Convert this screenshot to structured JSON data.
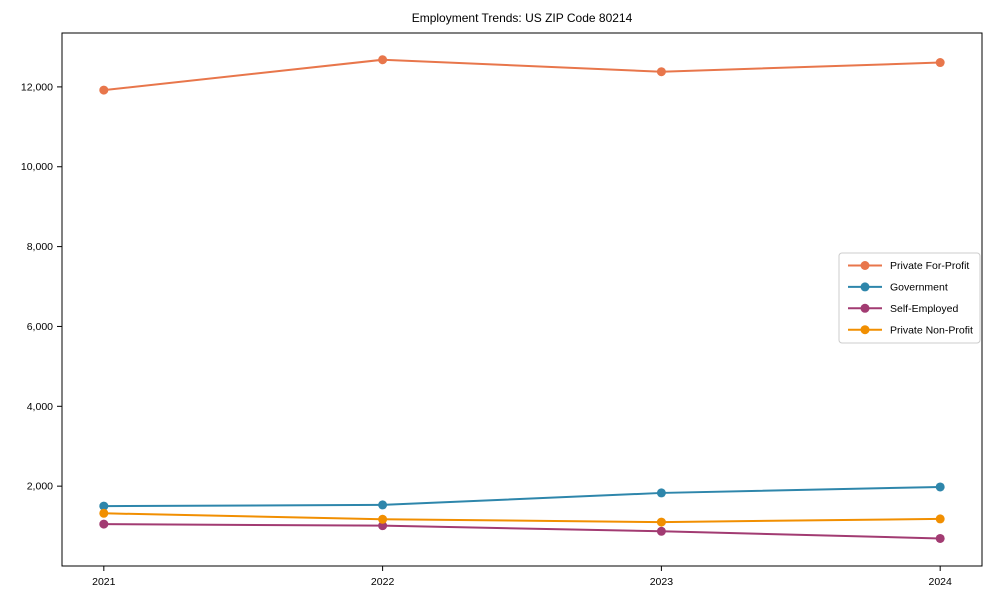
{
  "figure": {
    "title": "Employment Trends: US ZIP Code 80214"
  },
  "chart_data": {
    "type": "line",
    "title": "Employment Trends: US ZIP Code 80214",
    "x": [
      2021,
      2022,
      2023,
      2024
    ],
    "x_tick_labels": [
      "2021",
      "2022",
      "2023",
      "2024"
    ],
    "series": [
      {
        "name": "Private For-Profit",
        "color": "#E8764B",
        "values": [
          11920,
          12680,
          12380,
          12610
        ]
      },
      {
        "name": "Government",
        "color": "#2E86AB",
        "values": [
          1500,
          1530,
          1830,
          1980
        ]
      },
      {
        "name": "Self-Employed",
        "color": "#A23B72",
        "values": [
          1050,
          1010,
          870,
          690
        ]
      },
      {
        "name": "Private Non-Profit",
        "color": "#F18F01",
        "values": [
          1320,
          1170,
          1100,
          1180
        ]
      }
    ],
    "xlabel": "",
    "ylabel": "",
    "xlim": [
      2020.85,
      2024.15
    ],
    "ylim": [
      0,
      13350
    ],
    "yticks": [
      2000,
      4000,
      6000,
      8000,
      10000,
      12000
    ],
    "ytick_labels": [
      "2,000",
      "4,000",
      "6,000",
      "8,000",
      "10,000",
      "12,000"
    ],
    "grid": false,
    "legend_position": "center-right",
    "marker": "circle",
    "axis_color": "#000000",
    "legend_border_color": "#cccccc",
    "background": "#ffffff"
  }
}
